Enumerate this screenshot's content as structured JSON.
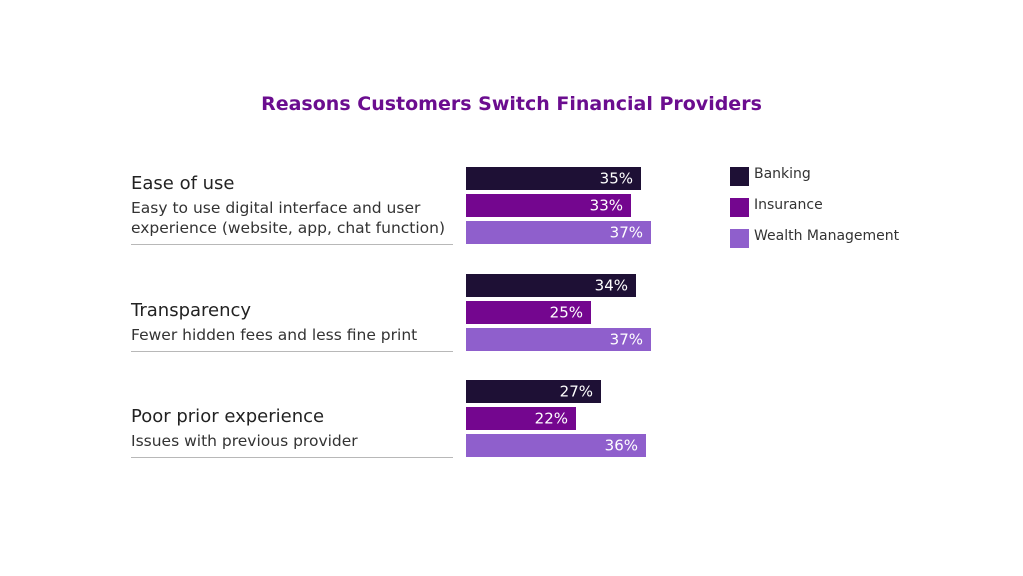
{
  "chart_data": {
    "type": "bar",
    "orientation": "horizontal",
    "title": "Reasons Customers Switch Financial Providers",
    "categories": [
      {
        "label": "Ease of use",
        "description": "Easy to use digital interface and user experience (website, app, chat function)"
      },
      {
        "label": "Transparency",
        "description": "Fewer hidden fees and less fine print"
      },
      {
        "label": "Poor prior experience",
        "description": "Issues with previous provider"
      }
    ],
    "series": [
      {
        "name": "Banking",
        "color": "#1e1035",
        "values": [
          35,
          34,
          27
        ],
        "labels": [
          "35%",
          "34%",
          "27%"
        ]
      },
      {
        "name": "Insurance",
        "color": "#74068f",
        "values": [
          33,
          25,
          22
        ],
        "labels": [
          "33%",
          "25%",
          "22%"
        ]
      },
      {
        "name": "Wealth Management",
        "color": "#8f5fcc",
        "values": [
          37,
          37,
          36
        ],
        "labels": [
          "37%",
          "37%",
          "36%"
        ]
      }
    ],
    "unit": "%",
    "legend_position": "right",
    "grid": false
  }
}
